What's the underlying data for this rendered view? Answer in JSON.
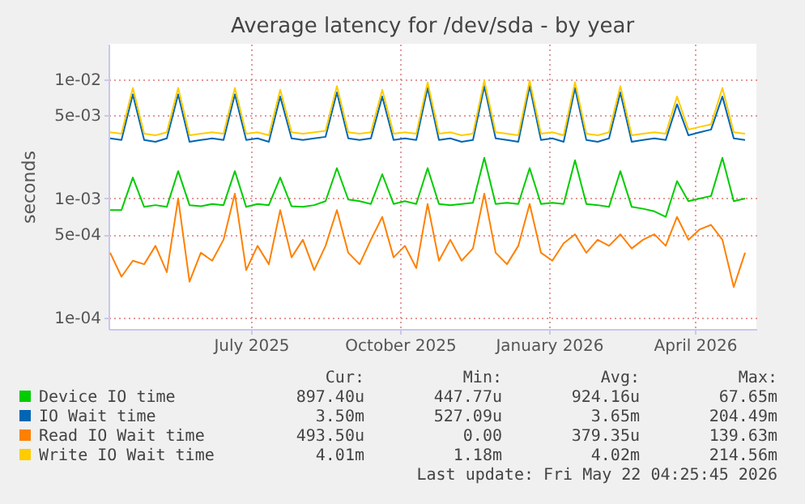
{
  "chart_data": {
    "type": "line",
    "title": "Average latency for /dev/sda - by year",
    "ylabel": "seconds",
    "x": [
      "2025-04-20",
      "2025-04-27",
      "2025-05-04",
      "2025-05-11",
      "2025-05-18",
      "2025-05-25",
      "2025-06-01",
      "2025-06-08",
      "2025-06-15",
      "2025-06-22",
      "2025-06-29",
      "2025-07-06",
      "2025-07-13",
      "2025-07-20",
      "2025-07-27",
      "2025-08-03",
      "2025-08-10",
      "2025-08-17",
      "2025-08-24",
      "2025-08-31",
      "2025-09-07",
      "2025-09-14",
      "2025-09-21",
      "2025-09-28",
      "2025-10-05",
      "2025-10-12",
      "2025-10-19",
      "2025-10-26",
      "2025-11-02",
      "2025-11-09",
      "2025-11-16",
      "2025-11-23",
      "2025-11-30",
      "2025-12-07",
      "2025-12-14",
      "2025-12-21",
      "2025-12-28",
      "2026-01-04",
      "2026-01-11",
      "2026-01-18",
      "2026-01-25",
      "2026-02-01",
      "2026-02-08",
      "2026-02-15",
      "2026-02-22",
      "2026-03-01",
      "2026-03-08",
      "2026-03-15",
      "2026-03-22",
      "2026-03-29",
      "2026-04-05",
      "2026-04-12",
      "2026-04-19",
      "2026-04-26",
      "2026-05-03",
      "2026-05-10",
      "2026-05-17"
    ],
    "series": [
      {
        "name": "Device IO time",
        "color": "#00cc00",
        "values": [
          0.0008,
          0.0008,
          0.0015,
          0.00085,
          0.00088,
          0.00085,
          0.0017,
          0.00088,
          0.00086,
          0.0009,
          0.00088,
          0.0017,
          0.00085,
          0.0009,
          0.00088,
          0.0015,
          0.00086,
          0.00085,
          0.00088,
          0.00095,
          0.0018,
          0.00098,
          0.00095,
          0.0009,
          0.0016,
          0.0009,
          0.00095,
          0.0009,
          0.0018,
          0.0009,
          0.00088,
          0.0009,
          0.00092,
          0.0022,
          0.0009,
          0.00092,
          0.0009,
          0.0018,
          0.0009,
          0.00092,
          0.0009,
          0.0021,
          0.0009,
          0.00088,
          0.00085,
          0.0017,
          0.00085,
          0.00082,
          0.00078,
          0.0007,
          0.0014,
          0.00095,
          0.001,
          0.00105,
          0.0022,
          0.00095,
          0.001
        ]
      },
      {
        "name": "IO Wait time",
        "color": "#0066b3",
        "values": [
          0.0032,
          0.0031,
          0.0075,
          0.0031,
          0.003,
          0.0032,
          0.0075,
          0.003,
          0.0031,
          0.0032,
          0.0031,
          0.0075,
          0.0031,
          0.0032,
          0.003,
          0.0072,
          0.0032,
          0.0031,
          0.0032,
          0.0033,
          0.0078,
          0.0032,
          0.0031,
          0.0032,
          0.0072,
          0.0031,
          0.0032,
          0.0031,
          0.0085,
          0.0031,
          0.0032,
          0.003,
          0.0031,
          0.0088,
          0.0032,
          0.0031,
          0.003,
          0.0088,
          0.0031,
          0.0032,
          0.003,
          0.0085,
          0.0031,
          0.003,
          0.0032,
          0.0078,
          0.003,
          0.0031,
          0.0032,
          0.0031,
          0.0062,
          0.0034,
          0.0036,
          0.0038,
          0.0072,
          0.0032,
          0.0031
        ]
      },
      {
        "name": "Read IO Wait time",
        "color": "#ff8000",
        "values": [
          0.00035,
          0.00022,
          0.0003,
          0.00028,
          0.0004,
          0.00024,
          0.001,
          0.0002,
          0.00035,
          0.0003,
          0.00045,
          0.0011,
          0.00025,
          0.0004,
          0.00028,
          0.0008,
          0.00032,
          0.00045,
          0.00025,
          0.0004,
          0.0008,
          0.00035,
          0.00028,
          0.00045,
          0.0007,
          0.00032,
          0.0004,
          0.00026,
          0.0009,
          0.0003,
          0.00045,
          0.0003,
          0.00038,
          0.0011,
          0.00035,
          0.00028,
          0.0004,
          0.0009,
          0.00035,
          0.0003,
          0.00042,
          0.0005,
          0.00035,
          0.00045,
          0.0004,
          0.0005,
          0.00038,
          0.00045,
          0.0005,
          0.0004,
          0.0007,
          0.00045,
          0.00055,
          0.0006,
          0.00045,
          0.00018,
          0.00035
        ]
      },
      {
        "name": "Write IO Wait time",
        "color": "#ffcc00",
        "values": [
          0.0036,
          0.0035,
          0.0085,
          0.0035,
          0.0034,
          0.0036,
          0.0085,
          0.0034,
          0.0035,
          0.0036,
          0.0035,
          0.0085,
          0.0035,
          0.0036,
          0.0034,
          0.0082,
          0.0036,
          0.0035,
          0.0036,
          0.0037,
          0.0088,
          0.0036,
          0.0035,
          0.0036,
          0.0082,
          0.0035,
          0.0036,
          0.0035,
          0.0095,
          0.0035,
          0.0036,
          0.0034,
          0.0035,
          0.0098,
          0.0036,
          0.0035,
          0.0034,
          0.0098,
          0.0035,
          0.0036,
          0.0034,
          0.0095,
          0.0035,
          0.0034,
          0.0036,
          0.0088,
          0.0034,
          0.0035,
          0.0036,
          0.0035,
          0.0072,
          0.0038,
          0.004,
          0.0042,
          0.0085,
          0.0036,
          0.0035
        ]
      }
    ],
    "xlim": [
      "2025-04-19",
      "2026-05-24"
    ],
    "xticks": [
      {
        "value": "2025-07-16",
        "label": "July 2025"
      },
      {
        "value": "2025-10-16",
        "label": "October 2025"
      },
      {
        "value": "2026-01-16",
        "label": "January 2026"
      },
      {
        "value": "2026-04-16",
        "label": "April 2026"
      }
    ],
    "ylim": [
      8e-05,
      0.02
    ],
    "log": true,
    "yticks": [
      {
        "value": 0.0001,
        "label": "1e-04"
      },
      {
        "value": 0.0005,
        "label": "5e-04"
      },
      {
        "value": 0.001,
        "label": "1e-03"
      },
      {
        "value": 0.005,
        "label": "5e-03"
      },
      {
        "value": 0.01,
        "label": "1e-02"
      }
    ],
    "grid": true,
    "legend": "bottom",
    "annotations": [
      "Cur:",
      "Min:",
      "Avg:",
      "Max:",
      "897.40u",
      "447.77u",
      "924.16u",
      "67.65m",
      "3.50m",
      "527.09u",
      "3.65m",
      "204.49m",
      "493.50u",
      "0.00",
      "379.35u",
      "139.63m",
      "4.01m",
      "1.18m",
      "4.02m",
      "214.56m",
      "Last update: Fri May 22 04:25:45 2026"
    ]
  }
}
